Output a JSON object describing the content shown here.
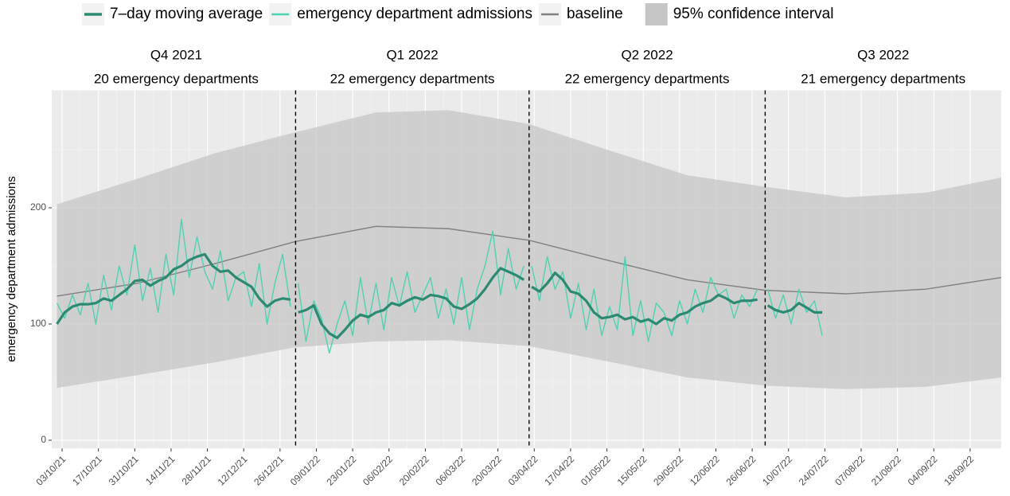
{
  "chart_data": {
    "type": "line",
    "y_label": "emergency department admissions",
    "legend": "top",
    "grid": true,
    "ylim": [
      -7,
      301
    ],
    "yticks": [
      0,
      100,
      200
    ],
    "xlim": [
      "2021-09-29",
      "2022-09-30"
    ],
    "xticks": [
      {
        "value": "2021-10-03",
        "label": "03/10/21"
      },
      {
        "value": "2021-10-17",
        "label": "17/10/21"
      },
      {
        "value": "2021-10-31",
        "label": "31/10/21"
      },
      {
        "value": "2021-11-14",
        "label": "14/11/21"
      },
      {
        "value": "2021-11-28",
        "label": "28/11/21"
      },
      {
        "value": "2021-12-12",
        "label": "12/12/21"
      },
      {
        "value": "2021-12-26",
        "label": "26/12/21"
      },
      {
        "value": "2022-01-09",
        "label": "09/01/22"
      },
      {
        "value": "2022-01-23",
        "label": "23/01/22"
      },
      {
        "value": "2022-02-06",
        "label": "06/02/22"
      },
      {
        "value": "2022-02-20",
        "label": "20/02/22"
      },
      {
        "value": "2022-03-06",
        "label": "06/03/22"
      },
      {
        "value": "2022-03-20",
        "label": "20/03/22"
      },
      {
        "value": "2022-04-03",
        "label": "03/04/22"
      },
      {
        "value": "2022-04-17",
        "label": "17/04/22"
      },
      {
        "value": "2022-05-01",
        "label": "01/05/22"
      },
      {
        "value": "2022-05-15",
        "label": "15/05/22"
      },
      {
        "value": "2022-05-29",
        "label": "29/05/22"
      },
      {
        "value": "2022-06-12",
        "label": "12/06/22"
      },
      {
        "value": "2022-06-26",
        "label": "26/06/22"
      },
      {
        "value": "2022-07-10",
        "label": "10/07/22"
      },
      {
        "value": "2022-07-24",
        "label": "24/07/22"
      },
      {
        "value": "2022-08-07",
        "label": "07/08/22"
      },
      {
        "value": "2022-08-21",
        "label": "21/08/22"
      },
      {
        "value": "2022-09-04",
        "label": "04/09/22"
      },
      {
        "value": "2022-09-18",
        "label": "18/09/22"
      }
    ],
    "panels": [
      {
        "label": "Q4 2021",
        "sublabel": "20 emergency departments",
        "start": "2021-10-01",
        "end": "2022-01-01"
      },
      {
        "label": "Q1 2022",
        "sublabel": "22 emergency departments",
        "start": "2022-01-01",
        "end": "2022-04-01"
      },
      {
        "label": "Q2 2022",
        "sublabel": "22 emergency departments",
        "start": "2022-04-01",
        "end": "2022-07-01"
      },
      {
        "label": "Q3 2022",
        "sublabel": "21 emergency departments",
        "start": "2022-07-01",
        "end": "2022-09-30"
      }
    ],
    "x": [
      "2021-10-01",
      "2021-10-04",
      "2021-10-07",
      "2021-10-10",
      "2021-10-13",
      "2021-10-16",
      "2021-10-19",
      "2021-10-22",
      "2021-10-25",
      "2021-10-28",
      "2021-10-31",
      "2021-11-03",
      "2021-11-06",
      "2021-11-09",
      "2021-11-12",
      "2021-11-15",
      "2021-11-18",
      "2021-11-21",
      "2021-11-24",
      "2021-11-27",
      "2021-11-30",
      "2021-12-03",
      "2021-12-06",
      "2021-12-09",
      "2021-12-12",
      "2021-12-15",
      "2021-12-18",
      "2021-12-21",
      "2021-12-24",
      "2021-12-27",
      "2021-12-30",
      "2022-01-01",
      "2022-01-02",
      "2022-01-05",
      "2022-01-08",
      "2022-01-11",
      "2022-01-14",
      "2022-01-17",
      "2022-01-20",
      "2022-01-23",
      "2022-01-26",
      "2022-01-29",
      "2022-02-01",
      "2022-02-04",
      "2022-02-07",
      "2022-02-10",
      "2022-02-13",
      "2022-02-16",
      "2022-02-19",
      "2022-02-22",
      "2022-02-25",
      "2022-02-28",
      "2022-03-03",
      "2022-03-06",
      "2022-03-09",
      "2022-03-12",
      "2022-03-15",
      "2022-03-18",
      "2022-03-21",
      "2022-03-24",
      "2022-03-27",
      "2022-03-30",
      "2022-04-01",
      "2022-04-02",
      "2022-04-05",
      "2022-04-08",
      "2022-04-11",
      "2022-04-14",
      "2022-04-17",
      "2022-04-20",
      "2022-04-23",
      "2022-04-26",
      "2022-04-29",
      "2022-05-02",
      "2022-05-05",
      "2022-05-08",
      "2022-05-11",
      "2022-05-14",
      "2022-05-17",
      "2022-05-20",
      "2022-05-23",
      "2022-05-26",
      "2022-05-29",
      "2022-06-01",
      "2022-06-04",
      "2022-06-07",
      "2022-06-10",
      "2022-06-13",
      "2022-06-16",
      "2022-06-19",
      "2022-06-22",
      "2022-06-25",
      "2022-06-28",
      "2022-07-01",
      "2022-07-02",
      "2022-07-05",
      "2022-07-08",
      "2022-07-11",
      "2022-07-14",
      "2022-07-17",
      "2022-07-20",
      "2022-07-23"
    ],
    "series": [
      {
        "name": "7–day moving average",
        "color": "#2b8a72",
        "values": [
          100,
          110,
          115,
          117,
          117,
          118,
          122,
          120,
          125,
          130,
          137,
          138,
          133,
          137,
          140,
          147,
          150,
          155,
          158,
          160,
          150,
          145,
          146,
          140,
          136,
          132,
          122,
          115,
          120,
          122,
          121,
          null,
          110,
          112,
          116,
          100,
          92,
          88,
          95,
          103,
          108,
          106,
          110,
          112,
          118,
          116,
          120,
          123,
          121,
          125,
          124,
          122,
          115,
          113,
          117,
          122,
          130,
          140,
          148,
          145,
          142,
          138,
          null,
          132,
          128,
          135,
          144,
          138,
          128,
          126,
          120,
          110,
          105,
          106,
          108,
          104,
          106,
          102,
          104,
          100,
          105,
          103,
          108,
          110,
          115,
          118,
          120,
          125,
          122,
          118,
          120,
          120,
          121,
          null,
          116,
          112,
          110,
          112,
          118,
          114,
          110,
          110
        ]
      },
      {
        "name": "emergency department admissions",
        "color": "#4dd2b2",
        "values": [
          118,
          105,
          125,
          108,
          135,
          100,
          142,
          112,
          150,
          125,
          168,
          120,
          148,
          110,
          160,
          125,
          190,
          140,
          175,
          145,
          130,
          163,
          120,
          140,
          145,
          115,
          152,
          100,
          135,
          160,
          115,
          null,
          135,
          85,
          120,
          105,
          75,
          100,
          120,
          90,
          140,
          100,
          135,
          95,
          140,
          115,
          145,
          110,
          125,
          140,
          105,
          130,
          100,
          140,
          95,
          130,
          150,
          180,
          125,
          165,
          130,
          150,
          null,
          150,
          120,
          158,
          130,
          145,
          105,
          135,
          95,
          130,
          90,
          115,
          95,
          158,
          90,
          120,
          85,
          118,
          110,
          90,
          120,
          100,
          130,
          110,
          140,
          125,
          130,
          105,
          125,
          115,
          130,
          null,
          130,
          105,
          125,
          100,
          130,
          110,
          120,
          90
        ]
      },
      {
        "name": "baseline",
        "color": "#808080",
        "x": [
          "2021-10-01",
          "2021-11-01",
          "2021-12-01",
          "2022-01-01",
          "2022-02-01",
          "2022-03-01",
          "2022-04-01",
          "2022-05-01",
          "2022-06-01",
          "2022-07-01",
          "2022-08-01",
          "2022-09-01",
          "2022-09-30"
        ],
        "values": [
          124,
          135,
          152,
          171,
          184,
          182,
          172,
          155,
          138,
          129,
          126,
          130,
          140
        ]
      },
      {
        "name": "95% confidence interval",
        "color": "#c6c6c6",
        "x": [
          "2021-10-01",
          "2021-11-01",
          "2021-12-01",
          "2022-01-01",
          "2022-02-01",
          "2022-03-01",
          "2022-04-01",
          "2022-05-01",
          "2022-06-01",
          "2022-07-01",
          "2022-08-01",
          "2022-09-01",
          "2022-09-30"
        ],
        "upper": [
          203,
          225,
          247,
          265,
          282,
          284,
          272,
          250,
          228,
          218,
          209,
          213,
          226
        ],
        "lower": [
          45,
          56,
          67,
          80,
          85,
          86,
          81,
          68,
          54,
          47,
          44,
          46,
          54
        ]
      }
    ]
  }
}
